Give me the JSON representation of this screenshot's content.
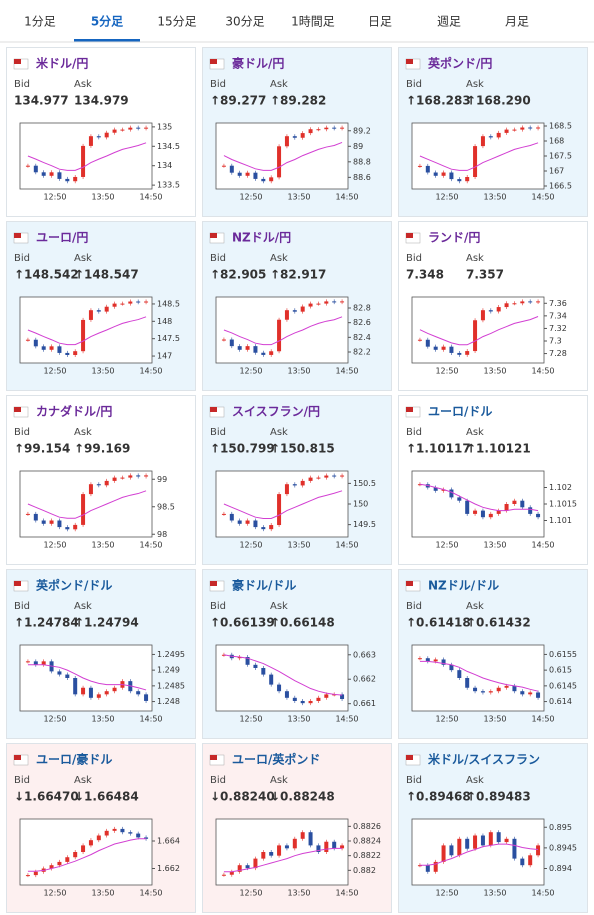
{
  "tabs": [
    "1分足",
    "5分足",
    "15分足",
    "30分足",
    "1時間足",
    "日足",
    "週足",
    "月足"
  ],
  "active_tab": 1,
  "labels": {
    "bid": "Bid",
    "ask": "Ask"
  },
  "time_labels": [
    "12:50",
    "13:50",
    "14:50"
  ],
  "cards": [
    {
      "title": "米ドル/円",
      "title_color": "#6b2a9a",
      "bg": "#ffffff",
      "bid": "134.977",
      "ask": "134.979",
      "chart": {
        "ylim": [
          133.4,
          135.1
        ],
        "yticks": [
          133.5,
          134,
          134.5,
          135
        ],
        "closes": [
          134.0,
          133.83,
          133.74,
          133.83,
          133.66,
          133.6,
          133.71,
          134.51,
          134.76,
          134.73,
          134.85,
          134.93,
          134.93,
          134.98,
          134.96,
          134.98
        ],
        "ma": [
          134.25,
          134.17,
          134.08,
          134.0,
          133.91,
          133.88,
          133.88,
          133.96,
          134.08,
          134.17,
          134.25,
          134.34,
          134.42,
          134.47,
          134.52,
          134.59
        ]
      }
    },
    {
      "title": "豪ドル/円",
      "title_color": "#6b2a9a",
      "bg": "#eaf5fc",
      "bid": "↑89.277",
      "ask": "↑89.282",
      "chart": {
        "ylim": [
          88.45,
          89.3
        ],
        "yticks": [
          88.6,
          88.8,
          89,
          89.2
        ],
        "closes": [
          88.75,
          88.66,
          88.62,
          88.66,
          88.58,
          88.55,
          88.6,
          89.0,
          89.13,
          89.11,
          89.17,
          89.22,
          89.22,
          89.24,
          89.23,
          89.24
        ],
        "ma": [
          88.88,
          88.83,
          88.79,
          88.75,
          88.71,
          88.69,
          88.69,
          88.73,
          88.79,
          88.83,
          88.88,
          88.92,
          88.96,
          88.99,
          89.01,
          89.05
        ]
      }
    },
    {
      "title": "英ポンド/円",
      "title_color": "#6b2a9a",
      "bg": "#eaf5fc",
      "bid": "↑168.283",
      "ask": "↑168.290",
      "chart": {
        "ylim": [
          166.4,
          168.6
        ],
        "yticks": [
          166.5,
          167,
          167.5,
          168,
          168.5
        ],
        "closes": [
          167.17,
          166.95,
          166.84,
          166.95,
          166.73,
          166.66,
          166.8,
          167.83,
          168.16,
          168.12,
          168.27,
          168.38,
          168.38,
          168.45,
          168.42,
          168.45
        ],
        "ma": [
          167.5,
          167.39,
          167.28,
          167.17,
          167.06,
          167.02,
          167.02,
          167.13,
          167.28,
          167.39,
          167.5,
          167.61,
          167.72,
          167.79,
          167.85,
          167.94
        ]
      }
    },
    {
      "title": "ユーロ/円",
      "title_color": "#6b2a9a",
      "bg": "#eaf5fc",
      "bid": "↑148.542",
      "ask": "↑148.547",
      "chart": {
        "ylim": [
          146.8,
          148.7
        ],
        "yticks": [
          147,
          147.5,
          148,
          148.5
        ],
        "closes": [
          147.47,
          147.28,
          147.18,
          147.28,
          147.09,
          147.03,
          147.14,
          148.04,
          148.32,
          148.28,
          148.42,
          148.51,
          148.51,
          148.57,
          148.55,
          148.57
        ],
        "ma": [
          147.75,
          147.66,
          147.56,
          147.47,
          147.37,
          147.33,
          147.33,
          147.43,
          147.56,
          147.66,
          147.75,
          147.85,
          147.94,
          148.0,
          148.05,
          148.13
        ]
      }
    },
    {
      "title": "NZドル/円",
      "title_color": "#6b2a9a",
      "bg": "#eaf5fc",
      "bid": "↑82.905",
      "ask": "↑82.917",
      "chart": {
        "ylim": [
          82.05,
          82.95
        ],
        "yticks": [
          82.2,
          82.4,
          82.6,
          82.8
        ],
        "closes": [
          82.37,
          82.28,
          82.23,
          82.28,
          82.19,
          82.16,
          82.21,
          82.64,
          82.77,
          82.75,
          82.82,
          82.86,
          82.86,
          82.89,
          82.88,
          82.89
        ],
        "ma": [
          82.5,
          82.46,
          82.41,
          82.37,
          82.32,
          82.3,
          82.3,
          82.35,
          82.41,
          82.46,
          82.5,
          82.55,
          82.59,
          82.62,
          82.64,
          82.68
        ]
      }
    },
    {
      "title": "ランド/円",
      "title_color": "#6b2a9a",
      "bg": "#ffffff",
      "bid": "7.348",
      "ask": "7.357",
      "chart": {
        "ylim": [
          7.265,
          7.37
        ],
        "yticks": [
          7.28,
          7.3,
          7.32,
          7.34,
          7.36
        ],
        "closes": [
          7.302,
          7.291,
          7.286,
          7.291,
          7.281,
          7.278,
          7.284,
          7.333,
          7.349,
          7.347,
          7.354,
          7.36,
          7.36,
          7.363,
          7.362,
          7.363
        ],
        "ma": [
          7.318,
          7.312,
          7.307,
          7.302,
          7.297,
          7.294,
          7.294,
          7.3,
          7.307,
          7.312,
          7.318,
          7.323,
          7.328,
          7.331,
          7.334,
          7.339
        ]
      }
    },
    {
      "title": "カナダドル/円",
      "title_color": "#6b2a9a",
      "bg": "#ffffff",
      "bid": "↑99.154",
      "ask": "↑99.169",
      "chart": {
        "ylim": [
          97.95,
          99.15
        ],
        "yticks": [
          98,
          98.5,
          99
        ],
        "closes": [
          98.37,
          98.25,
          98.19,
          98.25,
          98.13,
          98.09,
          98.17,
          98.73,
          98.91,
          98.89,
          98.97,
          99.03,
          99.03,
          99.07,
          99.05,
          99.07
        ],
        "ma": [
          98.55,
          98.49,
          98.43,
          98.37,
          98.31,
          98.29,
          98.29,
          98.35,
          98.43,
          98.49,
          98.55,
          98.61,
          98.67,
          98.71,
          98.74,
          98.79
        ]
      }
    },
    {
      "title": "スイスフラン/円",
      "title_color": "#6b2a9a",
      "bg": "#eaf5fc",
      "bid": "↑150.799",
      "ask": "↑150.815",
      "chart": {
        "ylim": [
          149.2,
          150.8
        ],
        "yticks": [
          149.5,
          150,
          150.5
        ],
        "closes": [
          149.76,
          149.6,
          149.52,
          149.6,
          149.44,
          149.39,
          149.49,
          150.24,
          150.48,
          150.45,
          150.56,
          150.64,
          150.64,
          150.69,
          150.67,
          150.69
        ],
        "ma": [
          150.0,
          149.92,
          149.84,
          149.76,
          149.68,
          149.65,
          149.65,
          149.73,
          149.84,
          149.92,
          150.0,
          150.08,
          150.16,
          150.21,
          150.26,
          150.32
        ]
      }
    },
    {
      "title": "ユーロ/ドル",
      "title_color": "#1a5a9c",
      "bg": "#ffffff",
      "bid": "↑1.10117",
      "ask": "↑1.10121",
      "chart": {
        "ylim": [
          1.1005,
          1.1025
        ],
        "yticks": [
          1.101,
          1.1015,
          1.102
        ],
        "closes": [
          1.1021,
          1.102,
          1.1019,
          1.10194,
          1.1017,
          1.1016,
          1.1012,
          1.1013,
          1.1011,
          1.1012,
          1.1013,
          1.1015,
          1.1016,
          1.1014,
          1.1012,
          1.1011
        ],
        "ma": [
          1.1021,
          1.10206,
          1.102,
          1.10194,
          1.10186,
          1.10174,
          1.10162,
          1.1015,
          1.1014,
          1.10134,
          1.1013,
          1.1013,
          1.10134,
          1.10134,
          1.10134,
          1.1013
        ]
      }
    },
    {
      "title": "英ポンド/ドル",
      "title_color": "#1a5a9c",
      "bg": "#eaf5fc",
      "bid": "↑1.24784",
      "ask": "↑1.24794",
      "chart": {
        "ylim": [
          1.2477,
          1.2498
        ],
        "yticks": [
          1.248,
          1.2485,
          1.249,
          1.2495
        ],
        "closes": [
          1.24928,
          1.24917,
          1.24928,
          1.24896,
          1.24886,
          1.24875,
          1.24823,
          1.24844,
          1.24812,
          1.24823,
          1.24833,
          1.24844,
          1.24865,
          1.24833,
          1.24823,
          1.24802
        ],
        "ma": [
          1.24917,
          1.24917,
          1.24917,
          1.24913,
          1.24909,
          1.249,
          1.24888,
          1.24875,
          1.24865,
          1.24858,
          1.24854,
          1.24854,
          1.24854,
          1.2485,
          1.24844,
          1.24837
        ]
      }
    },
    {
      "title": "豪ドル/ドル",
      "title_color": "#1a5a9c",
      "bg": "#eaf5fc",
      "bid": "↑0.66139",
      "ask": "↑0.66148",
      "chart": {
        "ylim": [
          0.6607,
          0.6634
        ],
        "yticks": [
          0.661,
          0.662,
          0.663
        ],
        "closes": [
          0.663,
          0.66286,
          0.66291,
          0.66259,
          0.66246,
          0.66219,
          0.66178,
          0.66151,
          0.66124,
          0.66111,
          0.66102,
          0.66111,
          0.66124,
          0.66138,
          0.66138,
          0.66119
        ],
        "ma": [
          0.663,
          0.66294,
          0.66291,
          0.66286,
          0.66275,
          0.66264,
          0.66248,
          0.66232,
          0.66213,
          0.66194,
          0.66178,
          0.66162,
          0.66151,
          0.66143,
          0.66138,
          0.66135
        ]
      }
    },
    {
      "title": "NZドル/ドル",
      "title_color": "#1a5a9c",
      "bg": "#eaf5fc",
      "bid": "↑0.61418",
      "ask": "↑0.61432",
      "chart": {
        "ylim": [
          0.6137,
          0.6158
        ],
        "yticks": [
          0.614,
          0.6145,
          0.615,
          0.6155
        ],
        "closes": [
          0.61538,
          0.61528,
          0.61534,
          0.61517,
          0.615,
          0.61475,
          0.61444,
          0.61433,
          0.61429,
          0.61433,
          0.61444,
          0.6145,
          0.61433,
          0.61423,
          0.61429,
          0.61412
        ],
        "ma": [
          0.61528,
          0.61528,
          0.61525,
          0.61521,
          0.61517,
          0.61509,
          0.61496,
          0.61486,
          0.61475,
          0.61467,
          0.6146,
          0.61454,
          0.6145,
          0.61446,
          0.61439,
          0.61433
        ]
      }
    },
    {
      "title": "ユーロ/豪ドル",
      "title_color": "#1a5a9c",
      "bg": "#fdf0f0",
      "bid": "↓1.66470",
      "ask": "↓1.66484",
      "chart": {
        "ylim": [
          1.6608,
          1.6656
        ],
        "yticks": [
          1.662,
          1.664
        ],
        "closes": [
          1.66152,
          1.66176,
          1.662,
          1.66224,
          1.66248,
          1.66282,
          1.6632,
          1.66368,
          1.66406,
          1.6644,
          1.66474,
          1.66488,
          1.66464,
          1.66454,
          1.66426,
          1.66416
        ],
        "ma": [
          1.6618,
          1.6618,
          1.66186,
          1.662,
          1.66214,
          1.66234,
          1.66253,
          1.66277,
          1.66301,
          1.6633,
          1.66354,
          1.66378,
          1.66392,
          1.66406,
          1.66416,
          1.66416
        ]
      }
    },
    {
      "title": "ユーロ/英ポンド",
      "title_color": "#1a5a9c",
      "bg": "#fdf0f0",
      "bid": "↓0.88240",
      "ask": "↓0.88248",
      "chart": {
        "ylim": [
          0.8818,
          0.8827
        ],
        "yticks": [
          0.882,
          0.8822,
          0.8824,
          0.8826
        ],
        "closes": [
          0.88194,
          0.88198,
          0.88207,
          0.88203,
          0.88216,
          0.88225,
          0.8822,
          0.88234,
          0.8823,
          0.88243,
          0.88252,
          0.88234,
          0.88225,
          0.88239,
          0.8823,
          0.88234
        ],
        "ma": [
          0.88198,
          0.88198,
          0.882,
          0.88202,
          0.88204,
          0.88207,
          0.8821,
          0.88213,
          0.88216,
          0.8822,
          0.88223,
          0.88225,
          0.88227,
          0.88229,
          0.8823,
          0.8823
        ]
      }
    },
    {
      "title": "米ドル/スイスフラン",
      "title_color": "#1a5a9c",
      "bg": "#eaf5fc",
      "bid": "↑0.89468",
      "ask": "↑0.89483",
      "chart": {
        "ylim": [
          0.8936,
          0.8952
        ],
        "yticks": [
          0.894,
          0.8945,
          0.895
        ],
        "closes": [
          0.89408,
          0.89392,
          0.89416,
          0.89456,
          0.89432,
          0.89472,
          0.89448,
          0.8948,
          0.89456,
          0.89488,
          0.89464,
          0.89472,
          0.89424,
          0.89408,
          0.89432,
          0.89456
        ],
        "ma": [
          0.89408,
          0.89408,
          0.89411,
          0.89418,
          0.89424,
          0.89432,
          0.8944,
          0.89446,
          0.89453,
          0.89456,
          0.89459,
          0.89459,
          0.89456,
          0.89451,
          0.89448,
          0.89446
        ]
      }
    }
  ]
}
